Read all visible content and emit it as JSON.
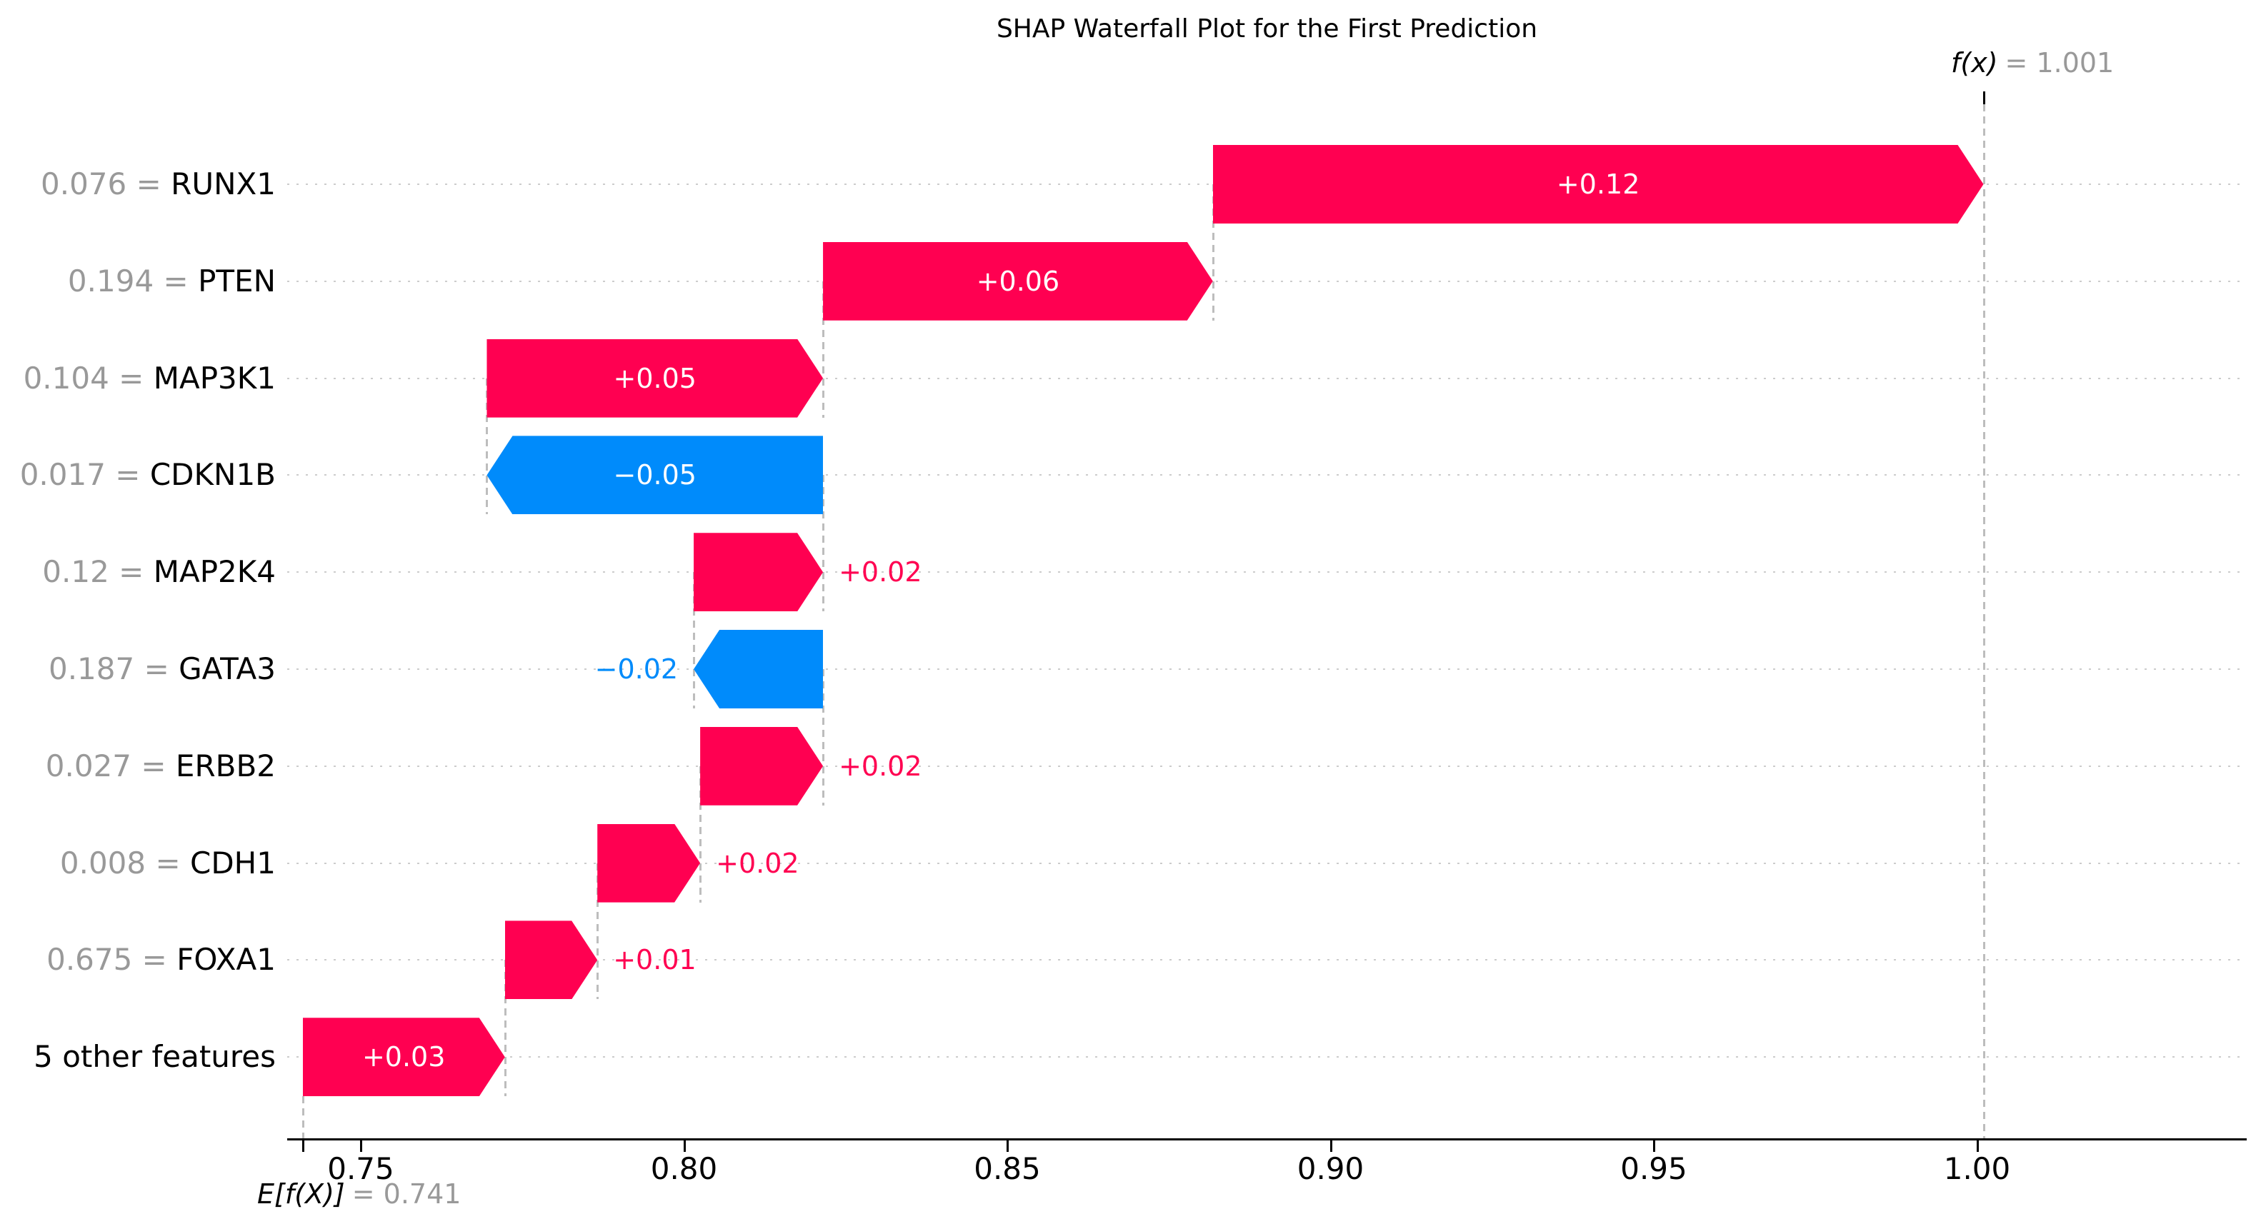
{
  "annotations": {
    "fx_name": "f(x)",
    "fx_value": "= 1.001",
    "ef_name": "E[f(X)]",
    "ef_value": "= 0.741"
  },
  "colors": {
    "positive": "#ff0051",
    "negative": "#008bfb",
    "gray_text": "#999999",
    "grid": "#cccccc",
    "connector": "#bdbdbd",
    "axis": "#000000",
    "bar_label_inside": "#ffffff"
  },
  "chart_data": {
    "type": "bar",
    "subtype": "shap-waterfall",
    "title": "SHAP Waterfall Plot for the First Prediction",
    "base_value": 0.741,
    "base_value_label": "E[f(X)] = 0.741",
    "prediction": 1.001,
    "prediction_label": "f(x) = 1.001",
    "xlabel": "",
    "ylabel": "",
    "xlim": [
      0.7387,
      1.0417
    ],
    "grid": "dotted-horizontal-per-row",
    "x_ticks": [
      {
        "value": 0.75,
        "label": "0.75"
      },
      {
        "value": 0.8,
        "label": "0.80"
      },
      {
        "value": 0.85,
        "label": "0.85"
      },
      {
        "value": 0.9,
        "label": "0.90"
      },
      {
        "value": 0.95,
        "label": "0.95"
      },
      {
        "value": 1.0,
        "label": "1.00"
      }
    ],
    "features": [
      {
        "name": "RUNX1",
        "feature_value": "0.076",
        "shap_label": "+0.12",
        "shap": 0.12,
        "from": 0.8818,
        "to": 1.001,
        "label_placement": "inside"
      },
      {
        "name": "PTEN",
        "feature_value": "0.194",
        "shap_label": "+0.06",
        "shap": 0.06,
        "from": 0.8215,
        "to": 0.8818,
        "label_placement": "inside"
      },
      {
        "name": "MAP3K1",
        "feature_value": "0.104",
        "shap_label": "+0.05",
        "shap": 0.05,
        "from": 0.7695,
        "to": 0.8215,
        "label_placement": "inside"
      },
      {
        "name": "CDKN1B",
        "feature_value": "0.017",
        "shap_label": "−0.05",
        "shap": -0.05,
        "from": 0.8215,
        "to": 0.7695,
        "label_placement": "inside"
      },
      {
        "name": "MAP2K4",
        "feature_value": "0.12",
        "shap_label": "+0.02",
        "shap": 0.02,
        "from": 0.8015,
        "to": 0.8215,
        "label_placement": "outside"
      },
      {
        "name": "GATA3",
        "feature_value": "0.187",
        "shap_label": "−0.02",
        "shap": -0.02,
        "from": 0.8215,
        "to": 0.8015,
        "label_placement": "outside"
      },
      {
        "name": "ERBB2",
        "feature_value": "0.027",
        "shap_label": "+0.02",
        "shap": 0.02,
        "from": 0.8025,
        "to": 0.8215,
        "label_placement": "outside"
      },
      {
        "name": "CDH1",
        "feature_value": "0.008",
        "shap_label": "+0.02",
        "shap": 0.02,
        "from": 0.7866,
        "to": 0.8025,
        "label_placement": "outside"
      },
      {
        "name": "FOXA1",
        "feature_value": "0.675",
        "shap_label": "+0.01",
        "shap": 0.01,
        "from": 0.7723,
        "to": 0.7866,
        "label_placement": "outside"
      },
      {
        "name": "5 other features",
        "feature_value": "",
        "shap_label": "+0.03",
        "shap": 0.03,
        "from": 0.741,
        "to": 0.7723,
        "label_placement": "inside"
      }
    ]
  }
}
